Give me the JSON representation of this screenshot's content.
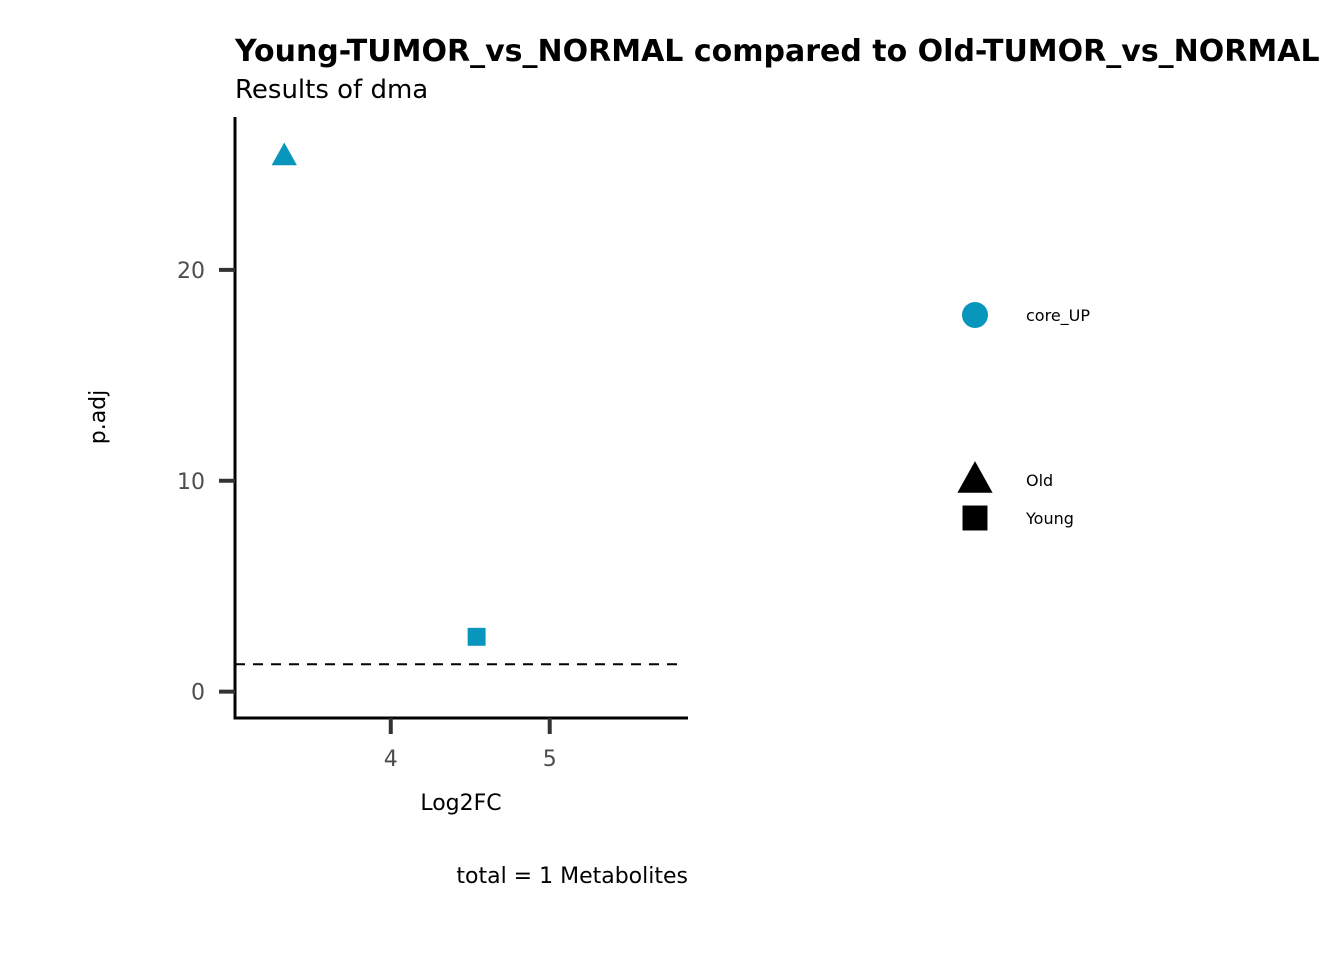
{
  "chart_data": {
    "type": "scatter",
    "title": "Young-TUMOR_vs_NORMAL compared to Old-TUMOR_vs_NORMAL",
    "subtitle": "Results of dma",
    "xlabel": "Log2FC",
    "ylabel": "p.adj",
    "caption": "total = 1 Metabolites",
    "xlim": [
      3.02,
      5.87
    ],
    "ylim": [
      -1.25,
      27.25
    ],
    "x_ticks": [
      4,
      5
    ],
    "y_ticks": [
      0,
      10,
      20
    ],
    "threshold_line": 1.3,
    "grid": false,
    "legend_placement": "right",
    "color_legend": [
      {
        "label": "core_UP",
        "color": "#0896BD"
      }
    ],
    "shape_legend": [
      {
        "label": "Old",
        "shape": "triangle"
      },
      {
        "label": "Young",
        "shape": "square"
      }
    ],
    "points": [
      {
        "x": 3.33,
        "y": 25.4,
        "shape": "triangle",
        "color": "#0896BD"
      },
      {
        "x": 4.54,
        "y": 2.6,
        "shape": "square",
        "color": "#0896BD"
      }
    ]
  }
}
